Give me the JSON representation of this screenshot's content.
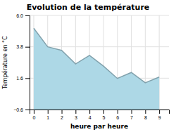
{
  "chart_data": {
    "type": "area",
    "title": "Evolution de la température",
    "xlabel": "heure par heure",
    "ylabel": "Température en °C",
    "x": [
      0,
      1,
      2,
      3,
      4,
      5,
      6,
      7,
      8,
      9
    ],
    "values": [
      5.1,
      3.8,
      3.55,
      2.6,
      3.2,
      2.45,
      1.58,
      2.0,
      1.28,
      1.68
    ],
    "color": "#add8e6",
    "xlim": [
      -0.3,
      9.7
    ],
    "ylim": [
      -0.6,
      6.0
    ],
    "xticks": [
      0,
      1,
      2,
      3,
      4,
      5,
      6,
      7,
      8,
      9
    ],
    "yticks": [
      {
        "value": -0.6,
        "label": "−0.6"
      },
      1.6,
      3.8,
      {
        "value": 6.0,
        "label": "6.0"
      }
    ],
    "grid": true
  }
}
